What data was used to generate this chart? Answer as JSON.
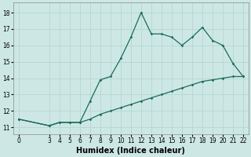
{
  "xlabel": "Humidex (Indice chaleur)",
  "background_color": "#cde8e4",
  "grid_color": "#b8d8d4",
  "line_color": "#1a6b5a",
  "x_upper_line": [
    0,
    3,
    4,
    5,
    6,
    7,
    8,
    9,
    10,
    11,
    12,
    13,
    14,
    15,
    16,
    17,
    18,
    19,
    20,
    21,
    22
  ],
  "y_upper_line": [
    11.5,
    11.1,
    11.3,
    11.3,
    11.3,
    12.6,
    13.9,
    14.1,
    15.2,
    16.5,
    18.0,
    16.7,
    16.7,
    16.5,
    16.0,
    16.5,
    17.1,
    16.3,
    16.0,
    14.9,
    14.1
  ],
  "x_lower_line": [
    0,
    3,
    4,
    5,
    6,
    7,
    8,
    9,
    10,
    11,
    12,
    13,
    14,
    15,
    16,
    17,
    18,
    19,
    20,
    21,
    22
  ],
  "y_lower_line": [
    11.5,
    11.1,
    11.3,
    11.3,
    11.3,
    11.5,
    11.8,
    12.0,
    12.2,
    12.4,
    12.6,
    12.8,
    13.0,
    13.2,
    13.4,
    13.6,
    13.8,
    13.9,
    14.0,
    14.1,
    14.1
  ],
  "xlim": [
    -0.5,
    22.5
  ],
  "ylim": [
    10.6,
    18.6
  ],
  "yticks": [
    11,
    12,
    13,
    14,
    15,
    16,
    17,
    18
  ],
  "xticks": [
    0,
    3,
    4,
    5,
    6,
    7,
    8,
    9,
    10,
    11,
    12,
    13,
    14,
    15,
    16,
    17,
    18,
    19,
    20,
    21,
    22
  ],
  "tick_fontsize": 5.5,
  "xlabel_fontsize": 7
}
